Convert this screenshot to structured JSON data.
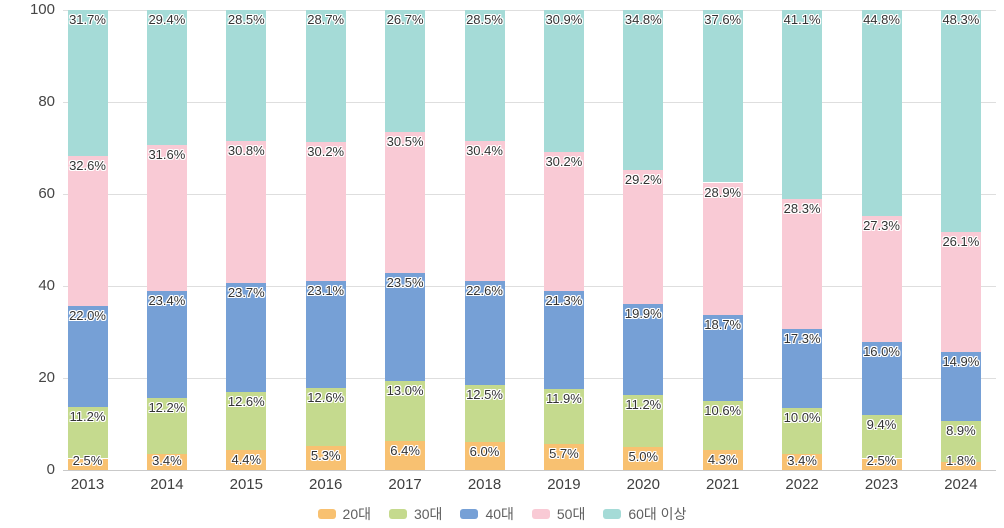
{
  "chart_data": {
    "type": "bar",
    "stacked": true,
    "title": "",
    "categories": [
      "2013",
      "2014",
      "2015",
      "2016",
      "2017",
      "2018",
      "2019",
      "2020",
      "2021",
      "2022",
      "2023",
      "2024"
    ],
    "series": [
      {
        "name": "20대",
        "color": "#f8c171",
        "values": [
          2.5,
          3.4,
          4.4,
          5.3,
          6.4,
          6.0,
          5.7,
          5.0,
          4.3,
          3.4,
          2.5,
          1.8
        ]
      },
      {
        "name": "30대",
        "color": "#c5da8e",
        "values": [
          11.2,
          12.2,
          12.6,
          12.6,
          13.0,
          12.5,
          11.9,
          11.2,
          10.6,
          10.0,
          9.4,
          8.9
        ]
      },
      {
        "name": "40대",
        "color": "#76a0d6",
        "values": [
          22.0,
          23.4,
          23.7,
          23.1,
          23.5,
          22.6,
          21.3,
          19.9,
          18.7,
          17.3,
          16.0,
          14.9
        ]
      },
      {
        "name": "50대",
        "color": "#f9cad5",
        "values": [
          32.6,
          31.6,
          30.8,
          30.2,
          30.5,
          30.4,
          30.2,
          29.2,
          28.9,
          28.3,
          27.3,
          26.1
        ]
      },
      {
        "name": "60대 이상",
        "color": "#a5dbd7",
        "values": [
          31.7,
          29.4,
          28.5,
          28.7,
          26.7,
          28.5,
          30.9,
          34.8,
          37.6,
          41.1,
          44.8,
          48.3
        ]
      }
    ],
    "xlabel": "",
    "ylabel": "",
    "ylim": [
      0,
      100
    ],
    "yticks": [
      0,
      20,
      40,
      60,
      80,
      100
    ],
    "grid": true,
    "legend_position": "bottom",
    "value_suffix": "%"
  },
  "style": {
    "gridline_color": "#dedede",
    "axis_line_color": "#c9c9c9",
    "tick_label_color": "#454545",
    "data_label_color": "#333333",
    "legend_text_color": "#5f5f5f",
    "background_color": "#ffffff"
  }
}
